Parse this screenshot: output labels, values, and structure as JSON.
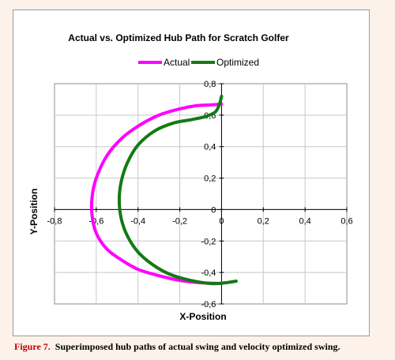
{
  "chart_data": {
    "type": "line",
    "title": "Actual vs. Optimized Hub Path for Scratch Golfer",
    "xlabel": "X-Position",
    "ylabel": "Y-Position",
    "xlim": [
      -0.8,
      0.6
    ],
    "ylim": [
      -0.6,
      0.8
    ],
    "xticks": [
      -0.8,
      -0.6,
      -0.4,
      -0.2,
      0,
      0.2,
      0.4,
      0.6
    ],
    "yticks": [
      -0.6,
      -0.4,
      -0.2,
      0,
      0.2,
      0.4,
      0.6,
      0.8
    ],
    "xtick_labels": [
      "-0,8",
      "-0,6",
      "-0,4",
      "-0,2",
      "0",
      "0,2",
      "0,4",
      "0,6"
    ],
    "ytick_labels": [
      "-0,6",
      "-0,4",
      "-0,2",
      "0",
      "0,2",
      "0,4",
      "0,6",
      "0,8"
    ],
    "grid": true,
    "legend_position": "top",
    "series": [
      {
        "name": "Actual",
        "color": "#ff00ff",
        "x": [
          0.0,
          -0.05,
          -0.12,
          -0.2,
          -0.3,
          -0.4,
          -0.48,
          -0.55,
          -0.6,
          -0.62,
          -0.62,
          -0.6,
          -0.55,
          -0.48,
          -0.4,
          -0.3,
          -0.2,
          -0.1,
          0.0
        ],
        "y": [
          0.67,
          0.665,
          0.66,
          0.64,
          0.6,
          0.53,
          0.45,
          0.34,
          0.2,
          0.08,
          -0.04,
          -0.15,
          -0.25,
          -0.32,
          -0.38,
          -0.42,
          -0.45,
          -0.465,
          -0.47
        ]
      },
      {
        "name": "Optimized",
        "color": "#137a13",
        "x": [
          0.0,
          -0.01,
          -0.03,
          -0.08,
          -0.15,
          -0.23,
          -0.32,
          -0.4,
          -0.45,
          -0.48,
          -0.49,
          -0.48,
          -0.45,
          -0.4,
          -0.33,
          -0.25,
          -0.15,
          -0.05,
          0.02,
          0.07
        ],
        "y": [
          0.72,
          0.67,
          0.62,
          0.59,
          0.57,
          0.55,
          0.5,
          0.41,
          0.3,
          0.18,
          0.06,
          -0.06,
          -0.17,
          -0.27,
          -0.35,
          -0.41,
          -0.45,
          -0.47,
          -0.465,
          -0.455
        ]
      }
    ]
  },
  "caption": {
    "label": "Figure 7.",
    "text": "Superimposed hub paths of actual swing and velocity optimized swing."
  }
}
